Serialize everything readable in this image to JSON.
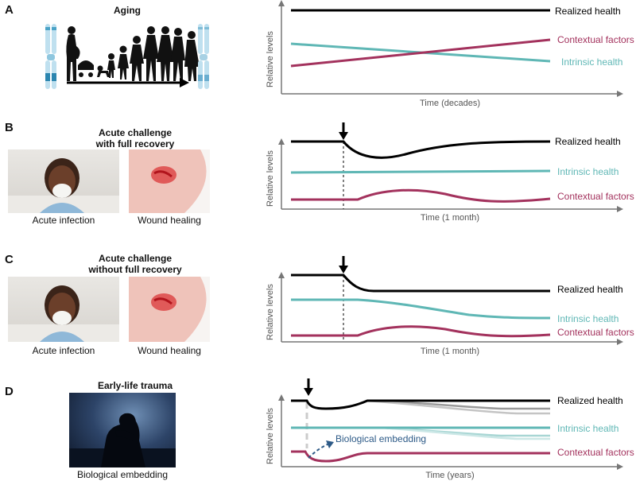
{
  "colors": {
    "realized": "#000000",
    "intrinsic": "#5fb7b5",
    "contextual": "#a3325d",
    "axis": "#777777",
    "embedding_arrow": "#2d5a87"
  },
  "panel_a": {
    "letter": "A",
    "title": "Aging",
    "axis_y": "Relative levels",
    "axis_x": "Time (decades)",
    "labels": {
      "realized": "Realized health",
      "contextual": "Contextual factors",
      "intrinsic": "Intrinsic health"
    }
  },
  "panel_b": {
    "letter": "B",
    "title_line1": "Acute challenge",
    "title_line2": "with full recovery",
    "caption_left": "Acute infection",
    "caption_right": "Wound healing",
    "axis_y": "Relative levels",
    "axis_x": "Time (1 month)",
    "labels": {
      "realized": "Realized health",
      "intrinsic": "Intrinsic health",
      "contextual": "Contextual factors"
    }
  },
  "panel_c": {
    "letter": "C",
    "title_line1": "Acute challenge",
    "title_line2": "without full recovery",
    "caption_left": "Acute infection",
    "caption_right": "Wound healing",
    "axis_y": "Relative levels",
    "axis_x": "Time (1 month)",
    "labels": {
      "realized": "Realized health",
      "intrinsic": "Intrinsic health",
      "contextual": "Contextual factors"
    }
  },
  "panel_d": {
    "letter": "D",
    "title": "Early-life trauma",
    "caption": "Biological embedding",
    "axis_y": "Relative levels",
    "axis_x": "Time (years)",
    "annotation": "Biological embedding",
    "labels": {
      "realized": "Realized health",
      "intrinsic": "Intrinsic health",
      "contextual": "Contextual factors"
    }
  }
}
